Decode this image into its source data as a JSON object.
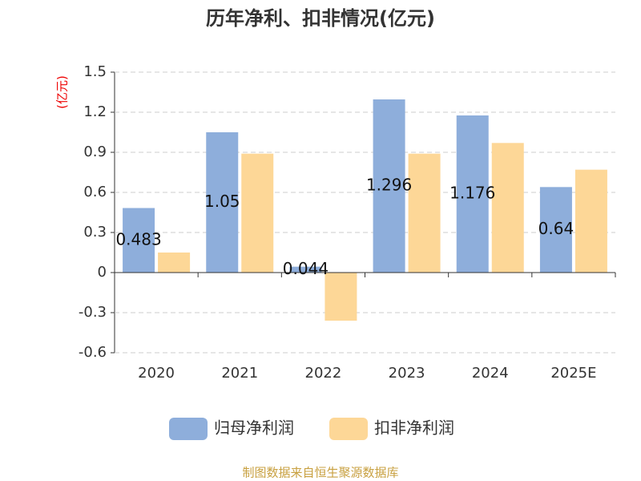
{
  "chart_data": {
    "type": "bar",
    "title": "历年净利、扣非情况(亿元)",
    "y_axis_label": "(亿元)",
    "categories": [
      "2020",
      "2021",
      "2022",
      "2023",
      "2024",
      "2025E"
    ],
    "series": [
      {
        "name": "归母净利润",
        "color": "#8eaedb",
        "values": [
          0.483,
          1.05,
          0.044,
          1.296,
          1.176,
          0.64
        ],
        "show_labels": true
      },
      {
        "name": "扣非净利润",
        "color": "#fdd797",
        "values": [
          0.15,
          0.89,
          -0.36,
          0.89,
          0.97,
          0.77
        ],
        "show_labels": false
      }
    ],
    "ylim": [
      -0.6,
      1.5
    ],
    "yticks": [
      -0.6,
      -0.3,
      0,
      0.3,
      0.6,
      0.9,
      1.2,
      1.5
    ],
    "grid": true,
    "legend": "bottom",
    "source": "制图数据来自恒生聚源数据库"
  }
}
